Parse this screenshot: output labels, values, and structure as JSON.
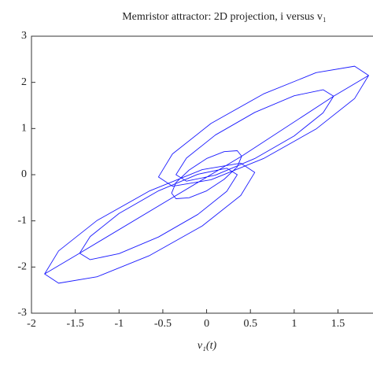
{
  "chart_data": {
    "type": "line",
    "title": "Memristor attractor: 2D projection, i versus v₁",
    "x_label": "v₁(t)",
    "x": [
      1.85,
      1.69,
      1.25,
      0.65,
      0.05,
      -0.39,
      -0.55,
      -0.39,
      0.05,
      0.65,
      1.25,
      1.69,
      1.85,
      1.45,
      1.33,
      1,
      0.55,
      0.1,
      -0.23,
      -0.35,
      -0.23,
      0.1,
      0.55,
      1,
      1.33,
      1.45,
      0.4,
      0.35,
      0.2,
      0,
      -0.2,
      -0.35,
      -0.4,
      -0.35,
      -0.2,
      0,
      0.2,
      0.35,
      0.4,
      -1.45,
      -1.33,
      -1,
      -0.55,
      -0.1,
      0.23,
      0.35,
      0.23,
      -0.1,
      -0.55,
      -1,
      -1.33,
      -1.45,
      -1.85,
      -1.69,
      -1.25,
      -0.65,
      -0.05,
      0.39,
      0.55,
      0.39,
      -0.05,
      -0.65,
      -1.25,
      -1.69,
      -1.85
    ],
    "series": [
      {
        "color": "#1a1aff",
        "values": [
          2.15,
          2.35,
          2.21,
          1.75,
          1.11,
          0.45,
          -0.05,
          -0.25,
          -0.11,
          0.35,
          0.99,
          1.65,
          2.15,
          1.7,
          1.84,
          1.71,
          1.35,
          0.86,
          0.36,
          0,
          -0.14,
          -0.01,
          0.35,
          0.84,
          1.34,
          1.7,
          0.4,
          0.52,
          0.5,
          0.35,
          0.1,
          -0.17,
          -0.4,
          -0.52,
          -0.5,
          -0.35,
          -0.1,
          0.17,
          0.4,
          -1.7,
          -1.84,
          -1.71,
          -1.35,
          -0.86,
          -0.36,
          0,
          0.14,
          0.01,
          -0.35,
          -0.84,
          -1.34,
          -1.7,
          -2.15,
          -2.35,
          -2.21,
          -1.75,
          -1.11,
          -0.45,
          0.05,
          0.25,
          0.11,
          -0.35,
          -0.99,
          -1.65,
          -2.15
        ]
      }
    ],
    "xlim": [
      -2,
      1.9
    ],
    "xticks": [
      -2,
      -1.5,
      -1,
      -0.5,
      0,
      0.5,
      1,
      1.5
    ],
    "ylim": [
      -3,
      3
    ],
    "yticks": [
      -3,
      -2,
      -1,
      0,
      1,
      2,
      3
    ]
  }
}
